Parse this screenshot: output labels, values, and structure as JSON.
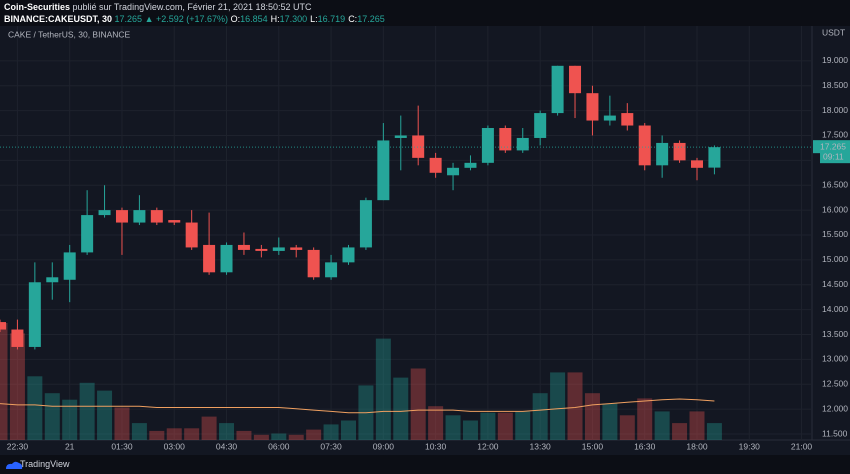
{
  "header": {
    "publisher": "Coin-Securities",
    "published": "publié sur TradingView.com, Février 21, 2021 18:50:52 UTC",
    "symbol": "BINANCE:CAKEUSDT, 30",
    "last": "17.265",
    "change": "▲ +2.592 (+17.67%)",
    "ohlc": [
      {
        "label": "O:",
        "value": "16.854"
      },
      {
        "label": "H:",
        "value": "17.300"
      },
      {
        "label": "L:",
        "value": "16.719"
      },
      {
        "label": "C:",
        "value": "17.265"
      }
    ]
  },
  "footer": {
    "brand": "TradingView"
  },
  "chart_data": {
    "type": "candlestick",
    "legend": "CAKE / TetherUS, 30, BINANCE",
    "currency": "USDT",
    "last_price": 17.265,
    "countdown": "09:11",
    "up_color": "#26a69a",
    "down_color": "#ef5350",
    "ma_color": "#f0a060",
    "grid": true,
    "x": [
      22.0,
      22.5,
      23.0,
      23.5,
      24.0,
      24.5,
      25.0,
      25.5,
      26.0,
      26.5,
      27.0,
      27.5,
      28.0,
      28.5,
      29.0,
      29.5,
      30.0,
      30.5,
      31.0,
      31.5,
      32.0,
      32.5,
      33.0,
      33.5,
      34.0,
      34.5,
      35.0,
      35.5,
      36.0,
      36.5,
      37.0,
      37.5,
      38.0,
      38.5,
      39.0,
      39.5,
      40.0,
      40.5,
      41.0,
      41.5,
      42.0,
      42.5
    ],
    "open": [
      13.75,
      13.6,
      13.25,
      14.55,
      14.6,
      15.15,
      15.9,
      16.0,
      15.75,
      16.0,
      15.8,
      15.75,
      15.3,
      14.75,
      15.3,
      15.22,
      15.18,
      15.25,
      15.2,
      14.65,
      14.95,
      15.25,
      16.2,
      17.45,
      17.5,
      17.05,
      16.7,
      16.85,
      16.95,
      17.65,
      17.2,
      17.45,
      17.95,
      18.9,
      18.35,
      17.8,
      17.95,
      17.7,
      16.9,
      17.35,
      17.0,
      16.854
    ],
    "high": [
      13.8,
      13.8,
      14.95,
      14.95,
      15.3,
      16.4,
      16.5,
      16.05,
      16.3,
      16.05,
      15.8,
      16.0,
      15.95,
      15.35,
      15.55,
      15.3,
      15.45,
      15.3,
      15.25,
      15.1,
      15.3,
      16.25,
      17.75,
      17.9,
      18.1,
      17.15,
      16.95,
      17.1,
      17.7,
      17.7,
      17.65,
      18.0,
      18.9,
      18.9,
      18.5,
      18.3,
      18.15,
      17.75,
      17.5,
      17.4,
      17.05,
      17.3
    ],
    "low": [
      13.55,
      13.2,
      13.2,
      14.2,
      14.15,
      15.1,
      15.85,
      15.1,
      15.7,
      15.7,
      15.7,
      15.2,
      14.7,
      14.7,
      15.1,
      15.05,
      15.1,
      15.05,
      14.6,
      14.6,
      14.9,
      15.2,
      16.2,
      16.8,
      16.9,
      16.65,
      16.4,
      16.8,
      16.9,
      17.15,
      17.15,
      17.3,
      17.9,
      17.85,
      17.5,
      17.7,
      17.6,
      16.8,
      16.65,
      16.95,
      16.6,
      16.719
    ],
    "close": [
      13.6,
      13.25,
      14.55,
      14.65,
      15.15,
      15.9,
      16.0,
      15.75,
      16.0,
      15.75,
      15.75,
      15.25,
      14.75,
      15.3,
      15.2,
      15.18,
      15.25,
      15.2,
      14.65,
      14.95,
      15.25,
      16.2,
      17.4,
      17.5,
      17.05,
      16.75,
      16.85,
      16.95,
      17.65,
      17.2,
      17.45,
      17.95,
      18.9,
      18.35,
      17.8,
      17.9,
      17.7,
      16.9,
      17.35,
      17.0,
      16.85,
      17.265
    ],
    "volume": [
      90,
      82,
      49,
      36,
      31,
      44,
      38,
      25,
      13,
      7,
      9,
      9,
      18,
      13,
      7,
      4,
      5,
      4,
      8,
      12,
      15,
      42,
      78,
      48,
      55,
      26,
      19,
      15,
      21,
      21,
      22,
      36,
      52,
      52,
      36,
      28,
      19,
      32,
      22,
      13,
      22,
      13
    ],
    "volume_ma": [
      28,
      27,
      27,
      26,
      26,
      26,
      26,
      26,
      26,
      25,
      25,
      25,
      25,
      25,
      25,
      25,
      25,
      24,
      23,
      22,
      21,
      21,
      22,
      22,
      23,
      23,
      23,
      22,
      22,
      22,
      22,
      23,
      24,
      25,
      27,
      28,
      29,
      30,
      31,
      31.5,
      31,
      30
    ],
    "vlim": [
      0,
      100
    ],
    "xlim": [
      22.0,
      45.3
    ],
    "ylim": [
      11.38,
      19.7
    ],
    "xticks": [
      {
        "value": 22.5,
        "label": "22:30"
      },
      {
        "value": 24,
        "label": "21"
      },
      {
        "value": 25.5,
        "label": "01:30"
      },
      {
        "value": 27,
        "label": "03:00"
      },
      {
        "value": 28.5,
        "label": "04:30"
      },
      {
        "value": 30,
        "label": "06:00"
      },
      {
        "value": 31.5,
        "label": "07:30"
      },
      {
        "value": 33,
        "label": "09:00"
      },
      {
        "value": 34.5,
        "label": "10:30"
      },
      {
        "value": 36,
        "label": "12:00"
      },
      {
        "value": 37.5,
        "label": "13:30"
      },
      {
        "value": 39,
        "label": "15:00"
      },
      {
        "value": 40.5,
        "label": "16:30"
      },
      {
        "value": 42,
        "label": "18:00"
      },
      {
        "value": 43.5,
        "label": "19:30"
      },
      {
        "value": 45,
        "label": "21:00"
      }
    ],
    "yticks": [
      {
        "value": 11.5,
        "label": "11.500"
      },
      {
        "value": 12,
        "label": "12.000"
      },
      {
        "value": 12.5,
        "label": "12.500"
      },
      {
        "value": 13,
        "label": "13.000"
      },
      {
        "value": 13.5,
        "label": "13.500"
      },
      {
        "value": 14,
        "label": "14.000"
      },
      {
        "value": 14.5,
        "label": "14.500"
      },
      {
        "value": 15,
        "label": "15.000"
      },
      {
        "value": 15.5,
        "label": "15.500"
      },
      {
        "value": 16,
        "label": "16.000"
      },
      {
        "value": 16.5,
        "label": "16.500"
      },
      {
        "value": 17,
        "label": "17.000"
      },
      {
        "value": 17.5,
        "label": "17.500"
      },
      {
        "value": 18,
        "label": "18.000"
      },
      {
        "value": 18.5,
        "label": "18.500"
      },
      {
        "value": 19,
        "label": "19.000"
      }
    ]
  }
}
